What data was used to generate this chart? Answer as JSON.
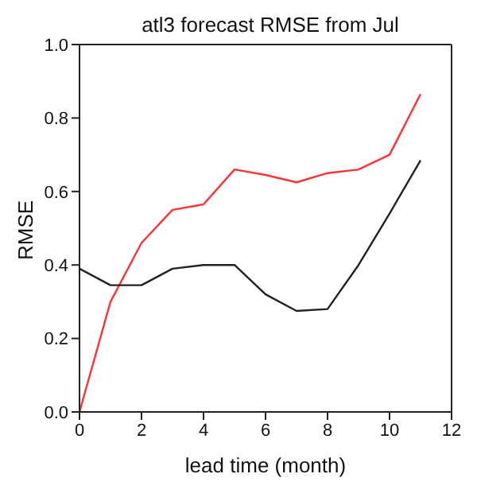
{
  "chart_data": {
    "type": "line",
    "title": "atl3 forecast RMSE from Jul",
    "xlabel": "lead time (month)",
    "ylabel": "RMSE",
    "x": [
      0,
      1,
      2,
      3,
      4,
      5,
      6,
      7,
      8,
      9,
      10,
      11
    ],
    "series": [
      {
        "color": "#ff3333",
        "values": [
          0.0,
          0.3,
          0.46,
          0.55,
          0.565,
          0.66,
          0.645,
          0.625,
          0.65,
          0.66,
          0.7,
          0.865
        ]
      },
      {
        "color": "#222222",
        "values": [
          0.39,
          0.345,
          0.345,
          0.39,
          0.4,
          0.4,
          0.32,
          0.275,
          0.28,
          0.4,
          0.54,
          0.685
        ]
      }
    ],
    "xlim": [
      0,
      12
    ],
    "xticks": [
      0,
      2,
      4,
      6,
      8,
      10,
      12
    ],
    "ylim": [
      0,
      1
    ],
    "yticks": [
      {
        "value": 0,
        "label": "0.0"
      },
      {
        "value": 0.2,
        "label": "0.2"
      },
      {
        "value": 0.4,
        "label": "0.4"
      },
      {
        "value": 0.6,
        "label": "0.6"
      },
      {
        "value": 0.8,
        "label": "0.8"
      },
      {
        "value": 1,
        "label": "1.0"
      }
    ],
    "grid": false,
    "legend": false,
    "marker": "none",
    "line_style": "solid"
  }
}
